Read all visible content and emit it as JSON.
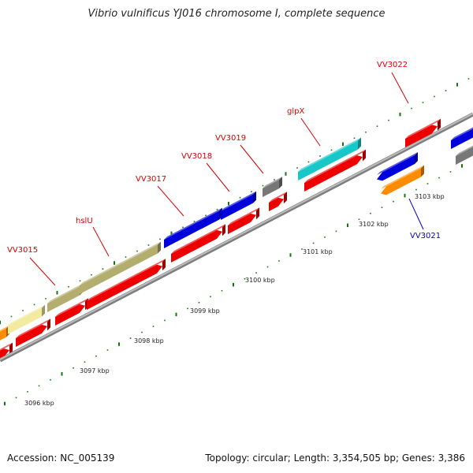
{
  "title": "Vibrio vulnificus YJ016 chromosome I, complete sequence",
  "accession_text": "Accession: NC_005139",
  "summary_text": "Topology: circular; Length: 3,354,505 bp; Genes: 3,386",
  "ticks_kbp": [
    "3096 kbp",
    "3097 kbp",
    "3098 kbp",
    "3099 kbp",
    "3100 kbp",
    "3101 kbp",
    "3102 kbp",
    "3103 kbp"
  ],
  "colors": {
    "forward_label": "#dd0000",
    "reverse_label": "#0000cc",
    "backbone": "#999999",
    "tick_mark": "#117711",
    "cds_forward": "#ee0000",
    "cds_blue": "#0000dd",
    "cds_olive": "#b3ae6e",
    "cds_pale_yellow": "#f2ea9e",
    "cds_cyan": "#18c8c8",
    "cds_gray": "#777777",
    "cds_orange": "#ff8c00"
  },
  "gene_labels": {
    "vv3015": "VV3015",
    "hslu": "hslU",
    "vv3017": "VV3017",
    "vv3018": "VV3018",
    "vv3019": "VV3019",
    "glpx": "glpX",
    "vv3021": "VV3021",
    "vv3022": "VV3022"
  }
}
